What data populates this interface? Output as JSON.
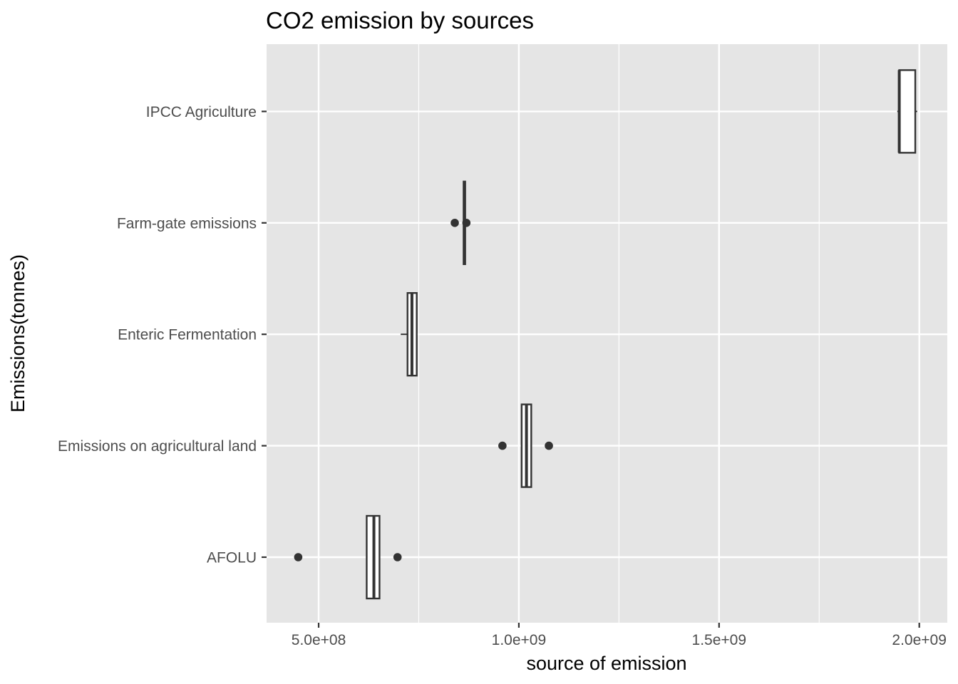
{
  "chart_data": {
    "type": "boxplot",
    "orientation": "horizontal",
    "title": "CO2 emission by sources",
    "xlabel": "source of emission",
    "ylabel": "Emissions(tonnes)",
    "xlim": [
      370000000,
      2070000000
    ],
    "x_ticks": [
      {
        "value": 500000000,
        "label": "5.0e+08"
      },
      {
        "value": 1000000000,
        "label": "1.0e+09"
      },
      {
        "value": 1500000000,
        "label": "1.5e+09"
      },
      {
        "value": 2000000000,
        "label": "2.0e+09"
      }
    ],
    "categories": [
      "AFOLU",
      "Emissions on agricultural land",
      "Enteric Fermentation",
      "Farm-gate emissions",
      "IPCC Agriculture"
    ],
    "boxes": [
      {
        "category": "AFOLU",
        "whisker_low": 620000000,
        "q1": 620000000,
        "median": 638000000,
        "q3": 652000000,
        "whisker_high": 652000000,
        "outliers": [
          449000000,
          697000000
        ]
      },
      {
        "category": "Emissions on agricultural land",
        "whisker_low": 1007000000,
        "q1": 1007000000,
        "median": 1019000000,
        "q3": 1031000000,
        "whisker_high": 1031000000,
        "outliers": [
          959000000,
          1075000000
        ]
      },
      {
        "category": "Enteric Fermentation",
        "whisker_low": 705000000,
        "q1": 722000000,
        "median": 733000000,
        "q3": 745000000,
        "whisker_high": 745000000,
        "outliers": []
      },
      {
        "category": "Farm-gate emissions",
        "whisker_low": 862000000,
        "q1": 862000000,
        "median": 864000000,
        "q3": 866000000,
        "whisker_high": 866000000,
        "outliers": [
          840000000,
          869000000
        ]
      },
      {
        "category": "IPCC Agriculture",
        "whisker_low": 1945000000,
        "q1": 1950000000,
        "median": 1950000000,
        "q3": 1990000000,
        "whisker_high": 1995000000,
        "outliers": []
      }
    ],
    "grid": true,
    "legend": "none",
    "colors": {
      "panel": "#e5e5e5",
      "grid": "#ffffff",
      "box_fill": "#ffffff",
      "box_stroke": "#333333",
      "point": "#333333",
      "tick": "#333333",
      "tick_label": "#4d4d4d"
    }
  }
}
